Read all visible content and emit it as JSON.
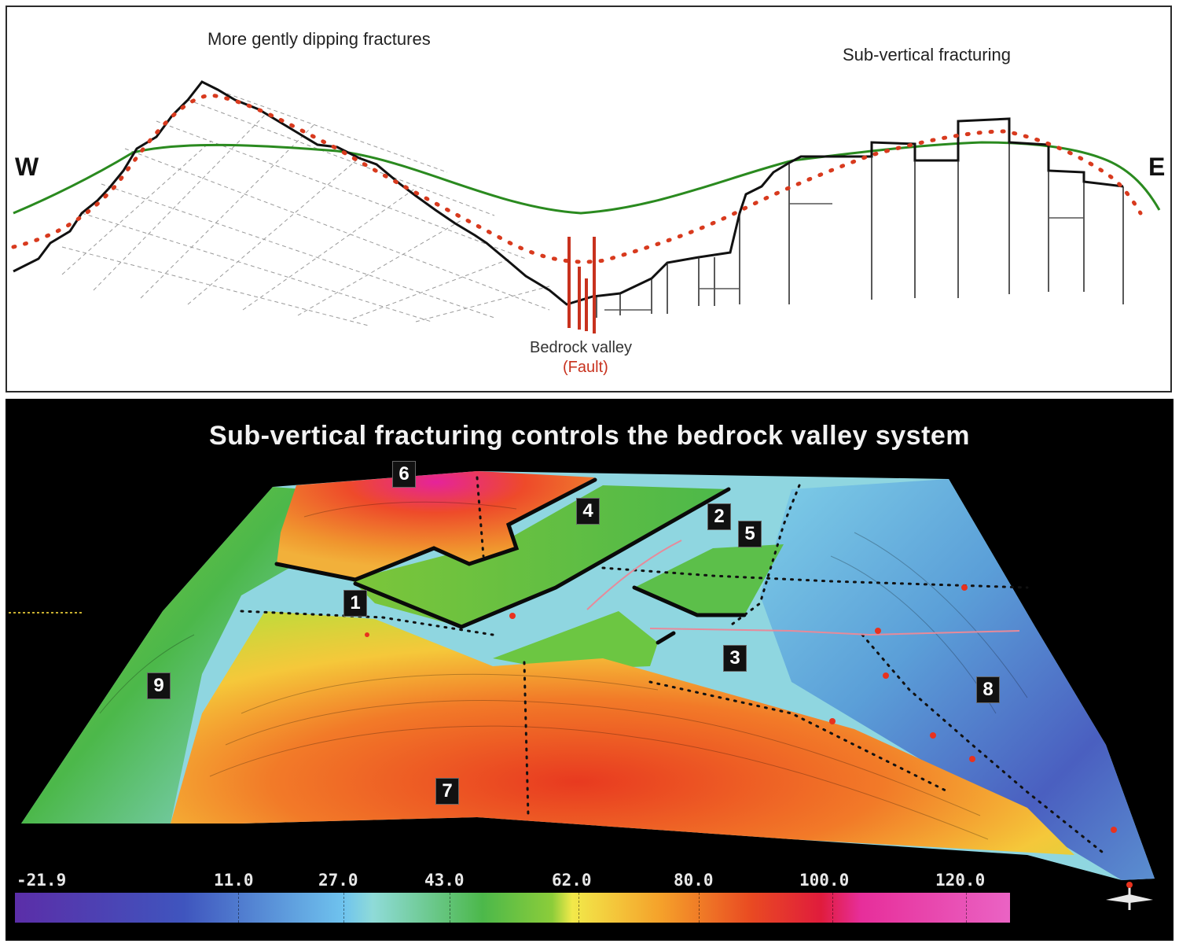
{
  "top_panel": {
    "west_label": "W",
    "east_label": "E",
    "left_annotation": "More gently dipping fractures",
    "right_annotation": "Sub-vertical fracturing",
    "valley_label": "Bedrock valley",
    "fault_label": "(Fault)",
    "colors": {
      "surface_line": "#2a8a1f",
      "dotted_line": "#d83a1e",
      "fault": "#c8321e"
    }
  },
  "bottom_panel": {
    "title": "Sub-vertical fracturing controls the bedrock valley system",
    "regions": [
      "1",
      "2",
      "3",
      "4",
      "5",
      "6",
      "7",
      "8",
      "9"
    ],
    "colorbar": {
      "ticks": [
        "-21.9",
        "11.0",
        "27.0",
        "43.0",
        "62.0",
        "80.0",
        "100.0",
        "120.0"
      ]
    }
  }
}
